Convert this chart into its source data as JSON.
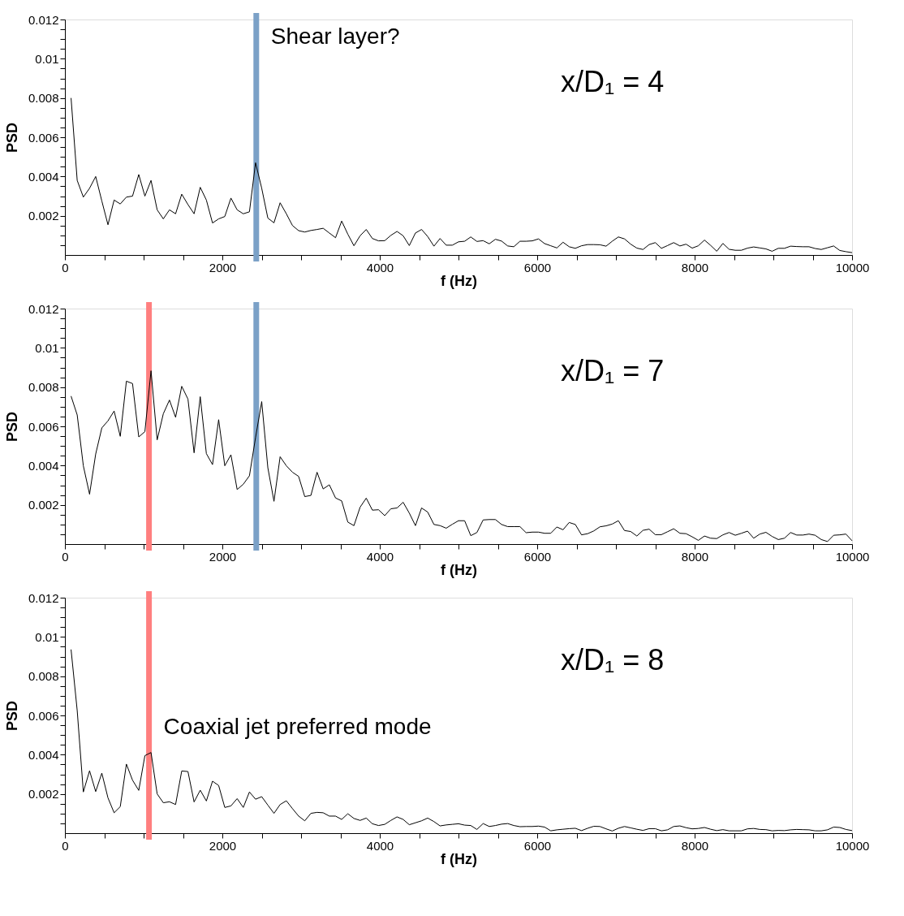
{
  "chart_data": [
    {
      "type": "line",
      "xlabel": "f (Hz)",
      "ylabel": "PSD",
      "xlim": [
        0,
        10000
      ],
      "ylim": [
        0,
        0.012
      ],
      "xticks": [
        0,
        {
          "value": 500,
          "label": null
        },
        {
          "value": 1000,
          "label": null
        },
        {
          "value": 1500,
          "label": null
        },
        2000,
        {
          "value": 2500,
          "label": null
        },
        {
          "value": 3000,
          "label": null
        },
        {
          "value": 3500,
          "label": null
        },
        4000,
        {
          "value": 4500,
          "label": null
        },
        {
          "value": 5000,
          "label": null
        },
        {
          "value": 5500,
          "label": null
        },
        6000,
        {
          "value": 6500,
          "label": null
        },
        {
          "value": 7000,
          "label": null
        },
        {
          "value": 7500,
          "label": null
        },
        8000,
        {
          "value": 8500,
          "label": null
        },
        {
          "value": 9000,
          "label": null
        },
        {
          "value": 9500,
          "label": null
        },
        10000
      ],
      "yticks": [
        {
          "value": 0.0005,
          "label": null
        },
        {
          "value": 0.001,
          "label": null
        },
        {
          "value": 0.0015,
          "label": null
        },
        0.002,
        {
          "value": 0.0025,
          "label": null
        },
        {
          "value": 0.003,
          "label": null
        },
        {
          "value": 0.0035,
          "label": null
        },
        0.004,
        {
          "value": 0.0045,
          "label": null
        },
        {
          "value": 0.005,
          "label": null
        },
        {
          "value": 0.0055,
          "label": null
        },
        0.006,
        {
          "value": 0.0065,
          "label": null
        },
        {
          "value": 0.007,
          "label": null
        },
        {
          "value": 0.0075,
          "label": null
        },
        0.008,
        {
          "value": 0.0085,
          "label": null
        },
        {
          "value": 0.009,
          "label": null
        },
        {
          "value": 0.0095,
          "label": null
        },
        0.01,
        {
          "value": 0.0105,
          "label": null
        },
        {
          "value": 0.011,
          "label": null
        },
        {
          "value": 0.0115,
          "label": null
        },
        0.012
      ],
      "x": [
        78,
        156,
        234,
        313,
        391,
        469,
        547,
        625,
        703,
        781,
        859,
        938,
        1016,
        1094,
        1172,
        1250,
        1328,
        1406,
        1484,
        1563,
        1641,
        1719,
        1797,
        1875,
        1953,
        2031,
        2109,
        2188,
        2266,
        2344,
        2422,
        2500,
        2578,
        2656,
        2734,
        2813,
        2891,
        2969,
        3047,
        3125,
        3203,
        3281,
        3359,
        3438,
        3516,
        3594,
        3672,
        3750,
        3828,
        3906,
        3984,
        4063,
        4141,
        4219,
        4297,
        4375,
        4453,
        4531,
        4609,
        4688,
        4766,
        4844,
        4922,
        5000,
        5078,
        5156,
        5234,
        5313,
        5391,
        5469,
        5547,
        5625,
        5703,
        5781,
        5859,
        5938,
        6016,
        6094,
        6172,
        6250,
        6328,
        6406,
        6484,
        6563,
        6641,
        6719,
        6797,
        6875,
        6953,
        7031,
        7109,
        7188,
        7266,
        7344,
        7422,
        7500,
        7578,
        7656,
        7734,
        7813,
        7891,
        7969,
        8047,
        8125,
        8203,
        8281,
        8359,
        8438,
        8516,
        8594,
        8672,
        8750,
        8828,
        8906,
        8984,
        9063,
        9141,
        9219,
        9297,
        9375,
        9453,
        9531,
        9609,
        9688,
        9766,
        9844,
        9922,
        10000
      ],
      "series": [
        {
          "color": "#000000",
          "values": [
            0.008,
            0.0038,
            0.00295,
            0.0034,
            0.004,
            0.00275,
            0.00154,
            0.0028,
            0.0026,
            0.00295,
            0.003,
            0.0041,
            0.003,
            0.0038,
            0.0023,
            0.00184,
            0.0023,
            0.0021,
            0.0031,
            0.00257,
            0.0021,
            0.00345,
            0.0028,
            0.00163,
            0.00184,
            0.00196,
            0.0029,
            0.0023,
            0.0021,
            0.0022,
            0.0047,
            0.0034,
            0.00188,
            0.00164,
            0.00266,
            0.0021,
            0.0015,
            0.00124,
            0.00117,
            0.00125,
            0.0013,
            0.00136,
            0.00112,
            0.00088,
            0.00173,
            0.00106,
            0.00047,
            0.00098,
            0.0013,
            0.00084,
            0.00072,
            0.00073,
            0.001,
            0.0012,
            0.00098,
            0.00048,
            0.00112,
            0.0013,
            0.00094,
            0.00045,
            0.00084,
            0.0005,
            0.0005,
            0.00067,
            0.0007,
            0.00092,
            0.00069,
            0.00073,
            0.00057,
            0.0008,
            0.00071,
            0.00046,
            0.00042,
            0.0007,
            0.0007,
            0.00072,
            0.00082,
            0.00058,
            0.00047,
            0.00036,
            0.00065,
            0.00042,
            0.00034,
            0.00047,
            0.00053,
            0.00053,
            0.00052,
            0.00045,
            0.0007,
            0.00092,
            0.00082,
            0.00055,
            0.00035,
            0.00028,
            0.00053,
            0.00063,
            0.00034,
            0.00048,
            0.00063,
            0.00046,
            0.00055,
            0.00035,
            0.00047,
            0.00076,
            0.00049,
            0.00019,
            0.00059,
            0.00029,
            0.00024,
            0.00024,
            0.00035,
            0.00041,
            0.00036,
            0.00031,
            0.00019,
            0.00034,
            0.00034,
            0.00045,
            0.00043,
            0.00042,
            0.00042,
            0.00033,
            0.00028,
            0.00037,
            0.00046,
            0.00023,
            0.00017,
            0.00012
          ]
        }
      ],
      "ref_lines": [
        {
          "axis": "x",
          "value": 2431,
          "label": "Shear layer?",
          "color": "#7ba1c7"
        }
      ],
      "annotations": [
        "x/D₁ = 4"
      ]
    },
    {
      "type": "line",
      "xlabel": "f (Hz)",
      "ylabel": "PSD",
      "xlim": [
        0,
        10000
      ],
      "ylim": [
        0,
        0.012
      ],
      "xticks": [
        0,
        {
          "value": 500,
          "label": null
        },
        {
          "value": 1000,
          "label": null
        },
        {
          "value": 1500,
          "label": null
        },
        2000,
        {
          "value": 2500,
          "label": null
        },
        {
          "value": 3000,
          "label": null
        },
        {
          "value": 3500,
          "label": null
        },
        4000,
        {
          "value": 4500,
          "label": null
        },
        {
          "value": 5000,
          "label": null
        },
        {
          "value": 5500,
          "label": null
        },
        6000,
        {
          "value": 6500,
          "label": null
        },
        {
          "value": 7000,
          "label": null
        },
        {
          "value": 7500,
          "label": null
        },
        8000,
        {
          "value": 8500,
          "label": null
        },
        {
          "value": 9000,
          "label": null
        },
        {
          "value": 9500,
          "label": null
        },
        10000
      ],
      "yticks": [
        {
          "value": 0.0005,
          "label": null
        },
        {
          "value": 0.001,
          "label": null
        },
        {
          "value": 0.0015,
          "label": null
        },
        0.002,
        {
          "value": 0.0025,
          "label": null
        },
        {
          "value": 0.003,
          "label": null
        },
        {
          "value": 0.0035,
          "label": null
        },
        0.004,
        {
          "value": 0.0045,
          "label": null
        },
        {
          "value": 0.005,
          "label": null
        },
        {
          "value": 0.0055,
          "label": null
        },
        0.006,
        {
          "value": 0.0065,
          "label": null
        },
        {
          "value": 0.007,
          "label": null
        },
        {
          "value": 0.0075,
          "label": null
        },
        0.008,
        {
          "value": 0.0085,
          "label": null
        },
        {
          "value": 0.009,
          "label": null
        },
        {
          "value": 0.0095,
          "label": null
        },
        0.01,
        {
          "value": 0.0105,
          "label": null
        },
        {
          "value": 0.011,
          "label": null
        },
        {
          "value": 0.0115,
          "label": null
        },
        0.012
      ],
      "x": [
        78,
        156,
        234,
        313,
        391,
        469,
        547,
        625,
        703,
        781,
        859,
        938,
        1016,
        1094,
        1172,
        1250,
        1328,
        1406,
        1484,
        1563,
        1641,
        1719,
        1797,
        1875,
        1953,
        2031,
        2109,
        2188,
        2266,
        2344,
        2422,
        2500,
        2578,
        2656,
        2734,
        2813,
        2891,
        2969,
        3047,
        3125,
        3203,
        3281,
        3359,
        3438,
        3516,
        3594,
        3672,
        3750,
        3828,
        3906,
        3984,
        4063,
        4141,
        4219,
        4297,
        4375,
        4453,
        4531,
        4609,
        4688,
        4766,
        4844,
        4922,
        5000,
        5078,
        5156,
        5234,
        5313,
        5391,
        5469,
        5547,
        5625,
        5703,
        5781,
        5859,
        5938,
        6016,
        6094,
        6172,
        6250,
        6328,
        6406,
        6484,
        6563,
        6641,
        6719,
        6797,
        6875,
        6953,
        7031,
        7109,
        7188,
        7266,
        7344,
        7422,
        7500,
        7578,
        7656,
        7734,
        7813,
        7891,
        7969,
        8047,
        8125,
        8203,
        8281,
        8359,
        8438,
        8516,
        8594,
        8672,
        8750,
        8828,
        8906,
        8984,
        9063,
        9141,
        9219,
        9297,
        9375,
        9453,
        9531,
        9609,
        9688,
        9766,
        9844,
        9922,
        10000
      ],
      "series": [
        {
          "color": "#000000",
          "values": [
            0.00754,
            0.00658,
            0.00399,
            0.00254,
            0.00459,
            0.00592,
            0.00628,
            0.00678,
            0.00549,
            0.0083,
            0.00818,
            0.00546,
            0.00573,
            0.00883,
            0.00531,
            0.00664,
            0.00734,
            0.00646,
            0.00804,
            0.00739,
            0.00465,
            0.00751,
            0.00461,
            0.00405,
            0.00634,
            0.00399,
            0.00455,
            0.00278,
            0.00305,
            0.00348,
            0.00543,
            0.00726,
            0.00389,
            0.00218,
            0.00445,
            0.00399,
            0.00366,
            0.00345,
            0.00242,
            0.00248,
            0.00366,
            0.00281,
            0.00302,
            0.00235,
            0.0022,
            0.00112,
            0.00094,
            0.00188,
            0.00234,
            0.00173,
            0.00175,
            0.00145,
            0.0018,
            0.00184,
            0.00213,
            0.00158,
            0.00094,
            0.00184,
            0.00163,
            0.001,
            0.00094,
            0.00081,
            0.00101,
            0.00119,
            0.00119,
            0.00043,
            0.00059,
            0.00123,
            0.00125,
            0.00125,
            0.001,
            0.00089,
            0.00089,
            0.00089,
            0.00058,
            0.00061,
            0.00061,
            0.00055,
            0.00055,
            0.00087,
            0.00073,
            0.0011,
            0.001,
            0.00047,
            0.00053,
            0.00067,
            0.00088,
            0.00093,
            0.00102,
            0.00119,
            0.00069,
            0.00064,
            0.00041,
            0.0007,
            0.00076,
            0.00048,
            0.00048,
            0.00063,
            0.00078,
            0.00055,
            0.00053,
            0.00037,
            0.00019,
            0.00041,
            0.0003,
            0.00028,
            0.00047,
            0.00059,
            0.00045,
            0.00055,
            0.00066,
            0.0003,
            0.00051,
            0.0006,
            0.00039,
            0.00023,
            0.0003,
            0.00059,
            0.00046,
            0.00046,
            0.00051,
            0.00045,
            0.00023,
            0.00013,
            0.00045,
            0.00047,
            0.00051,
            0.00017
          ]
        }
      ],
      "ref_lines": [
        {
          "axis": "x",
          "value": 1068,
          "color": "#ff7f7f"
        },
        {
          "axis": "x",
          "value": 2431,
          "color": "#7ba1c7"
        }
      ],
      "annotations": [
        "x/D₁ = 7"
      ]
    },
    {
      "type": "line",
      "xlabel": "f (Hz)",
      "ylabel": "PSD",
      "xlim": [
        0,
        10000
      ],
      "ylim": [
        0,
        0.012
      ],
      "xticks": [
        0,
        {
          "value": 500,
          "label": null
        },
        {
          "value": 1000,
          "label": null
        },
        {
          "value": 1500,
          "label": null
        },
        2000,
        {
          "value": 2500,
          "label": null
        },
        {
          "value": 3000,
          "label": null
        },
        {
          "value": 3500,
          "label": null
        },
        4000,
        {
          "value": 4500,
          "label": null
        },
        {
          "value": 5000,
          "label": null
        },
        {
          "value": 5500,
          "label": null
        },
        6000,
        {
          "value": 6500,
          "label": null
        },
        {
          "value": 7000,
          "label": null
        },
        {
          "value": 7500,
          "label": null
        },
        8000,
        {
          "value": 8500,
          "label": null
        },
        {
          "value": 9000,
          "label": null
        },
        {
          "value": 9500,
          "label": null
        },
        10000
      ],
      "yticks": [
        {
          "value": 0.0005,
          "label": null
        },
        {
          "value": 0.001,
          "label": null
        },
        {
          "value": 0.0015,
          "label": null
        },
        0.002,
        {
          "value": 0.0025,
          "label": null
        },
        {
          "value": 0.003,
          "label": null
        },
        {
          "value": 0.0035,
          "label": null
        },
        0.004,
        {
          "value": 0.0045,
          "label": null
        },
        {
          "value": 0.005,
          "label": null
        },
        {
          "value": 0.0055,
          "label": null
        },
        0.006,
        {
          "value": 0.0065,
          "label": null
        },
        {
          "value": 0.007,
          "label": null
        },
        {
          "value": 0.0075,
          "label": null
        },
        0.008,
        {
          "value": 0.0085,
          "label": null
        },
        {
          "value": 0.009,
          "label": null
        },
        {
          "value": 0.0095,
          "label": null
        },
        0.01,
        {
          "value": 0.0105,
          "label": null
        },
        {
          "value": 0.011,
          "label": null
        },
        {
          "value": 0.0115,
          "label": null
        },
        0.012
      ],
      "x": [
        78,
        156,
        234,
        313,
        391,
        469,
        547,
        625,
        703,
        781,
        859,
        938,
        1016,
        1094,
        1172,
        1250,
        1328,
        1406,
        1484,
        1563,
        1641,
        1719,
        1797,
        1875,
        1953,
        2031,
        2109,
        2188,
        2266,
        2344,
        2422,
        2500,
        2578,
        2656,
        2734,
        2813,
        2891,
        2969,
        3047,
        3125,
        3203,
        3281,
        3359,
        3438,
        3516,
        3594,
        3672,
        3750,
        3828,
        3906,
        3984,
        4063,
        4141,
        4219,
        4297,
        4375,
        4453,
        4531,
        4609,
        4688,
        4766,
        4844,
        4922,
        5000,
        5078,
        5156,
        5234,
        5313,
        5391,
        5469,
        5547,
        5625,
        5703,
        5781,
        5859,
        5938,
        6016,
        6094,
        6172,
        6250,
        6328,
        6406,
        6484,
        6563,
        6641,
        6719,
        6797,
        6875,
        6953,
        7031,
        7109,
        7188,
        7266,
        7344,
        7422,
        7500,
        7578,
        7656,
        7734,
        7813,
        7891,
        7969,
        8047,
        8125,
        8203,
        8281,
        8359,
        8438,
        8516,
        8594,
        8672,
        8750,
        8828,
        8906,
        8984,
        9063,
        9141,
        9219,
        9297,
        9375,
        9453,
        9531,
        9609,
        9688,
        9766,
        9844,
        9922,
        10000
      ],
      "series": [
        {
          "color": "#000000",
          "values": [
            0.00936,
            0.00625,
            0.0021,
            0.00318,
            0.00212,
            0.00306,
            0.0018,
            0.00104,
            0.00135,
            0.00352,
            0.0027,
            0.00218,
            0.00395,
            0.00411,
            0.002,
            0.00155,
            0.0016,
            0.00146,
            0.00317,
            0.00314,
            0.00159,
            0.00219,
            0.00164,
            0.00265,
            0.00243,
            0.00131,
            0.00139,
            0.00176,
            0.00131,
            0.0021,
            0.00173,
            0.00186,
            0.00143,
            0.00101,
            0.00146,
            0.00165,
            0.00125,
            0.00087,
            0.00063,
            0.00101,
            0.00106,
            0.00104,
            0.00087,
            0.00087,
            0.0007,
            0.00099,
            0.00075,
            0.00065,
            0.00077,
            0.00048,
            0.00039,
            0.00045,
            0.00065,
            0.00083,
            0.0007,
            0.00043,
            0.00053,
            0.00063,
            0.00077,
            0.00059,
            0.00037,
            0.00042,
            0.00045,
            0.00048,
            0.00041,
            0.00039,
            0.00019,
            0.00049,
            0.00034,
            0.00039,
            0.00046,
            0.00049,
            0.00039,
            0.00033,
            0.00034,
            0.00034,
            0.00036,
            0.00031,
            0.00012,
            0.00017,
            0.0002,
            0.00023,
            0.00025,
            0.00013,
            0.00025,
            0.00035,
            0.00034,
            0.00022,
            0.00011,
            0.00025,
            0.00034,
            0.00027,
            0.0002,
            0.00014,
            0.00023,
            0.00023,
            0.00012,
            0.00017,
            0.00034,
            0.00037,
            0.00028,
            0.00022,
            0.00024,
            0.00029,
            0.0002,
            0.00013,
            0.00018,
            0.00012,
            0.00012,
            0.00012,
            0.00022,
            0.00024,
            0.00019,
            0.00018,
            0.00012,
            0.00014,
            0.00013,
            0.00017,
            0.00019,
            0.00018,
            0.00017,
            0.00012,
            0.00012,
            0.00017,
            0.00031,
            0.00029,
            0.00019,
            0.00013
          ]
        }
      ],
      "ref_lines": [
        {
          "axis": "x",
          "value": 1068,
          "label": "Coaxial jet preferred mode",
          "color": "#ff7f7f"
        }
      ],
      "annotations": [
        "x/D₁ = 8"
      ]
    }
  ]
}
